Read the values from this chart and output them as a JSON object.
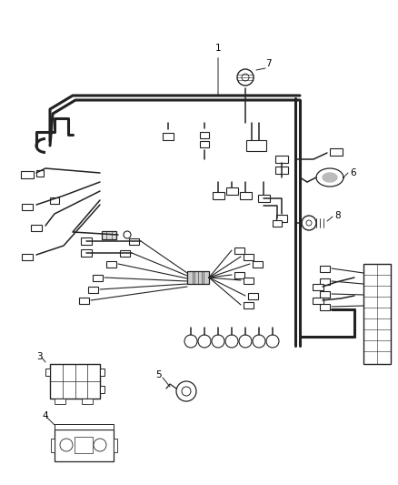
{
  "bg_color": "#ffffff",
  "line_color": "#222222",
  "fig_width": 4.38,
  "fig_height": 5.33,
  "dpi": 100,
  "harness_color": "#333333",
  "connector_color": "#333333",
  "label_fontsize": 7.5
}
